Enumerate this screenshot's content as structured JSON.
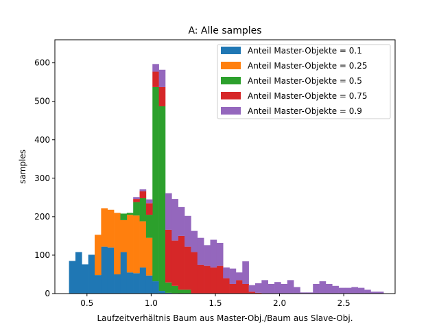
{
  "chart_data": {
    "type": "bar",
    "title": "A: Alle samples",
    "xlabel": "Laufzeitverhältnis Baum aus Master-Obj./Baum aus Slave-Obj.",
    "ylabel": "samples",
    "xlim": [
      0.25,
      2.9
    ],
    "ylim": [
      0,
      660
    ],
    "xticks": [
      0.5,
      1.0,
      1.5,
      2.0,
      2.5
    ],
    "xtick_labels": [
      "0.5",
      "1.0",
      "1.5",
      "2.0",
      "2.5"
    ],
    "yticks": [
      0,
      100,
      200,
      300,
      400,
      500,
      600
    ],
    "ytick_labels": [
      "0",
      "100",
      "200",
      "300",
      "400",
      "500",
      "600"
    ],
    "legend_position": "top-right",
    "stacked": true,
    "series": [
      {
        "name": "Anteil Master-Objekte = 0.1",
        "color": "#1f77b4",
        "bins": [
          [
            0.36,
            0.41,
            85
          ],
          [
            0.41,
            0.46,
            108
          ],
          [
            0.46,
            0.51,
            76
          ],
          [
            0.51,
            0.56,
            101
          ],
          [
            0.56,
            0.61,
            48
          ],
          [
            0.61,
            0.66,
            122
          ],
          [
            0.66,
            0.71,
            120
          ],
          [
            0.71,
            0.76,
            50
          ],
          [
            0.76,
            0.81,
            108
          ],
          [
            0.81,
            0.86,
            55
          ],
          [
            0.86,
            0.91,
            53
          ],
          [
            0.91,
            0.96,
            68
          ],
          [
            0.96,
            1.01,
            47
          ],
          [
            1.01,
            1.06,
            32
          ],
          [
            1.06,
            1.11,
            7
          ],
          [
            1.11,
            1.16,
            2
          ],
          [
            1.16,
            1.21,
            1
          ]
        ]
      },
      {
        "name": "Anteil Master-Objekte = 0.25",
        "color": "#ff7f0e",
        "bins": [
          [
            0.36,
            0.41,
            0
          ],
          [
            0.41,
            0.46,
            0
          ],
          [
            0.46,
            0.51,
            0
          ],
          [
            0.51,
            0.56,
            0
          ],
          [
            0.56,
            0.61,
            105
          ],
          [
            0.61,
            0.66,
            100
          ],
          [
            0.66,
            0.71,
            98
          ],
          [
            0.71,
            0.76,
            160
          ],
          [
            0.76,
            0.81,
            83
          ],
          [
            0.81,
            0.86,
            150
          ],
          [
            0.86,
            0.91,
            150
          ],
          [
            0.91,
            0.96,
            120
          ],
          [
            0.96,
            1.01,
            98
          ],
          [
            1.01,
            1.06,
            0
          ],
          [
            1.06,
            1.11,
            0
          ],
          [
            1.11,
            1.16,
            0
          ],
          [
            1.16,
            1.21,
            0
          ]
        ]
      },
      {
        "name": "Anteil Master-Objekte = 0.5",
        "color": "#2ca02c",
        "bins": [
          [
            0.76,
            0.81,
            17
          ],
          [
            0.81,
            0.86,
            5
          ],
          [
            0.86,
            0.91,
            35
          ],
          [
            0.91,
            0.96,
            60
          ],
          [
            0.96,
            1.01,
            60
          ],
          [
            1.01,
            1.06,
            505
          ],
          [
            1.06,
            1.11,
            480
          ],
          [
            1.11,
            1.16,
            27
          ],
          [
            1.16,
            1.21,
            19
          ],
          [
            1.21,
            1.26,
            10
          ],
          [
            1.26,
            1.31,
            10
          ]
        ]
      },
      {
        "name": "Anteil Master-Objekte = 0.75",
        "color": "#d62728",
        "bins": [
          [
            0.86,
            0.91,
            8
          ],
          [
            0.91,
            0.96,
            18
          ],
          [
            0.96,
            1.01,
            30
          ],
          [
            1.01,
            1.06,
            40
          ],
          [
            1.06,
            1.11,
            50
          ],
          [
            1.11,
            1.16,
            137
          ],
          [
            1.16,
            1.21,
            118
          ],
          [
            1.21,
            1.26,
            140
          ],
          [
            1.26,
            1.31,
            112
          ],
          [
            1.31,
            1.36,
            108
          ],
          [
            1.36,
            1.41,
            75
          ],
          [
            1.41,
            1.46,
            72
          ],
          [
            1.46,
            1.51,
            68
          ],
          [
            1.51,
            1.56,
            72
          ],
          [
            1.56,
            1.61,
            40
          ],
          [
            1.61,
            1.66,
            25
          ],
          [
            1.66,
            1.71,
            35
          ],
          [
            1.71,
            1.76,
            25
          ],
          [
            1.76,
            1.81,
            5
          ],
          [
            1.81,
            1.86,
            2
          ]
        ]
      },
      {
        "name": "Anteil Master-Objekte = 0.9",
        "color": "#9467bd",
        "bins": [
          [
            0.86,
            0.91,
            5
          ],
          [
            0.91,
            0.96,
            5
          ],
          [
            0.96,
            1.01,
            10
          ],
          [
            1.01,
            1.06,
            20
          ],
          [
            1.06,
            1.11,
            45
          ],
          [
            1.11,
            1.16,
            95
          ],
          [
            1.16,
            1.21,
            108
          ],
          [
            1.21,
            1.26,
            75
          ],
          [
            1.26,
            1.31,
            80
          ],
          [
            1.31,
            1.36,
            55
          ],
          [
            1.36,
            1.41,
            70
          ],
          [
            1.41,
            1.46,
            54
          ],
          [
            1.46,
            1.51,
            72
          ],
          [
            1.51,
            1.56,
            60
          ],
          [
            1.56,
            1.61,
            28
          ],
          [
            1.61,
            1.66,
            40
          ],
          [
            1.66,
            1.71,
            20
          ],
          [
            1.71,
            1.76,
            59
          ],
          [
            1.76,
            1.81,
            17
          ],
          [
            1.81,
            1.86,
            25
          ],
          [
            1.86,
            1.91,
            35
          ],
          [
            1.91,
            1.96,
            25
          ],
          [
            1.96,
            2.01,
            30
          ],
          [
            2.01,
            2.06,
            25
          ],
          [
            2.06,
            2.11,
            35
          ],
          [
            2.11,
            2.16,
            17
          ],
          [
            2.16,
            2.21,
            3
          ],
          [
            2.21,
            2.26,
            3
          ],
          [
            2.26,
            2.31,
            25
          ],
          [
            2.31,
            2.36,
            32
          ],
          [
            2.36,
            2.41,
            25
          ],
          [
            2.41,
            2.46,
            20
          ],
          [
            2.46,
            2.51,
            15
          ],
          [
            2.51,
            2.56,
            15
          ],
          [
            2.56,
            2.61,
            17
          ],
          [
            2.61,
            2.66,
            15
          ],
          [
            2.66,
            2.71,
            10
          ],
          [
            2.71,
            2.76,
            5
          ],
          [
            2.76,
            2.81,
            5
          ]
        ]
      }
    ]
  }
}
